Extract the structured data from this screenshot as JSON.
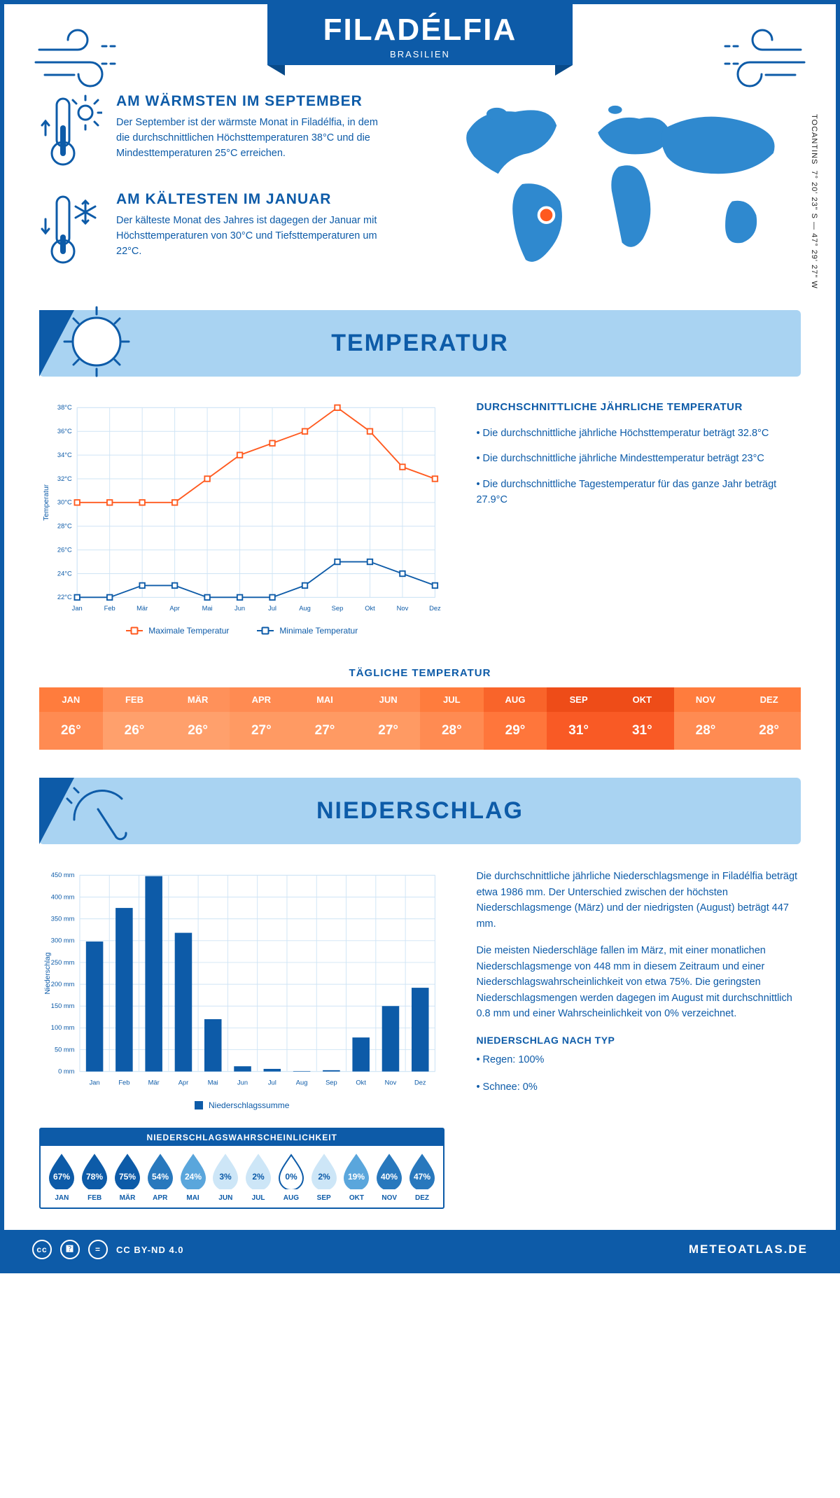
{
  "header": {
    "city": "FILADÉLFIA",
    "country": "BRASILIEN",
    "coords": "7° 20' 23\" S — 47° 29' 27\" W",
    "region": "TOCANTINS",
    "marker_color": "#ff5a1f",
    "map_color": "#2f89cf"
  },
  "colors": {
    "primary": "#0d5ba8",
    "banner": "#a9d3f2",
    "white": "#ffffff",
    "grid": "#cfe4f5"
  },
  "facts": {
    "warm_title": "AM WÄRMSTEN IM SEPTEMBER",
    "warm_body": "Der September ist der wärmste Monat in Filadélfia, in dem die durchschnittlichen Höchsttemperaturen 38°C und die Mindesttemperaturen 25°C erreichen.",
    "cold_title": "AM KÄLTESTEN IM JANUAR",
    "cold_body": "Der kälteste Monat des Jahres ist dagegen der Januar mit Höchsttemperaturen von 30°C und Tiefsttemperaturen um 22°C."
  },
  "sections": {
    "temp": "TEMPERATUR",
    "precip": "NIEDERSCHLAG"
  },
  "months": [
    "Jan",
    "Feb",
    "Mär",
    "Apr",
    "Mai",
    "Jun",
    "Jul",
    "Aug",
    "Sep",
    "Okt",
    "Nov",
    "Dez"
  ],
  "months_upper": [
    "JAN",
    "FEB",
    "MÄR",
    "APR",
    "MAI",
    "JUN",
    "JUL",
    "AUG",
    "SEP",
    "OKT",
    "NOV",
    "DEZ"
  ],
  "temperature_chart": {
    "type": "line",
    "y_title": "Temperatur",
    "yticks": [
      22,
      24,
      26,
      28,
      30,
      32,
      34,
      36,
      38
    ],
    "ylim": [
      22,
      38
    ],
    "max_color": "#ff5a1f",
    "min_color": "#0d5ba8",
    "grid_color": "#cfe4f5",
    "line_width": 2,
    "marker": "square",
    "legend": {
      "max": "Maximale Temperatur",
      "min": "Minimale Temperatur"
    },
    "max_series": [
      30,
      30,
      30,
      30,
      32,
      34,
      35,
      36,
      38,
      36,
      33,
      32
    ],
    "min_series": [
      22,
      22,
      23,
      23,
      22,
      22,
      22,
      23,
      25,
      25,
      24,
      23
    ]
  },
  "temp_text": {
    "heading": "DURCHSCHNITTLICHE JÄHRLICHE TEMPERATUR",
    "b1": "• Die durchschnittliche jährliche Höchsttemperatur beträgt 32.8°C",
    "b2": "• Die durchschnittliche jährliche Mindesttemperatur beträgt 23°C",
    "b3": "• Die durchschnittliche Tagestemperatur für das ganze Jahr beträgt 27.9°C"
  },
  "daily_temp": {
    "title": "TÄGLICHE TEMPERATUR",
    "values": [
      "26°",
      "26°",
      "26°",
      "27°",
      "27°",
      "27°",
      "28°",
      "29°",
      "31°",
      "31°",
      "28°",
      "28°"
    ],
    "hdr_colors": [
      "#ff7c3d",
      "#ff915a",
      "#ff915a",
      "#ff8b52",
      "#ff8b52",
      "#ff8b52",
      "#ff7c3d",
      "#f9642a",
      "#ee4c18",
      "#ee4c18",
      "#ff7c3d",
      "#ff7c3d"
    ],
    "val_colors": [
      "#ff8b52",
      "#ffa06c",
      "#ffa06c",
      "#ff9a63",
      "#ff9a63",
      "#ff9a63",
      "#ff8b52",
      "#ff763b",
      "#f95a25",
      "#f95a25",
      "#ff8b52",
      "#ff8b52"
    ]
  },
  "precip_chart": {
    "type": "bar",
    "y_title": "Niederschlag",
    "yticks": [
      0,
      50,
      100,
      150,
      200,
      250,
      300,
      350,
      400,
      450
    ],
    "ylim": [
      0,
      450
    ],
    "bar_color": "#0d5ba8",
    "grid_color": "#cfe4f5",
    "bar_width": 0.58,
    "legend": "Niederschlagssumme",
    "values": [
      298,
      375,
      448,
      318,
      120,
      12,
      6,
      1,
      3,
      78,
      150,
      192
    ]
  },
  "precip_text": {
    "p1": "Die durchschnittliche jährliche Niederschlagsmenge in Filadélfia beträgt etwa 1986 mm. Der Unterschied zwischen der höchsten Niederschlagsmenge (März) und der niedrigsten (August) beträgt 447 mm.",
    "p2": "Die meisten Niederschläge fallen im März, mit einer monatlichen Niederschlagsmenge von 448 mm in diesem Zeitraum und einer Niederschlagswahrscheinlichkeit von etwa 75%. Die geringsten Niederschlagsmengen werden dagegen im August mit durchschnittlich 0.8 mm und einer Wahrscheinlichkeit von 0% verzeichnet.",
    "type_h": "NIEDERSCHLAG NACH TYP",
    "t1": "• Regen: 100%",
    "t2": "• Schnee: 0%"
  },
  "probability": {
    "heading": "NIEDERSCHLAGSWAHRSCHEINLICHKEIT",
    "values": [
      67,
      78,
      75,
      54,
      24,
      3,
      2,
      0,
      2,
      19,
      40,
      47
    ],
    "labels": [
      "67%",
      "78%",
      "75%",
      "54%",
      "24%",
      "3%",
      "2%",
      "0%",
      "2%",
      "19%",
      "40%",
      "47%"
    ],
    "scale_colors": {
      "0": "#e6f2fb",
      "20": "#71b6e5",
      "40": "#3c94d4",
      "60": "#1b6fb9",
      "80": "#0d5ba8"
    }
  },
  "footer": {
    "license": "CC BY-ND 4.0",
    "site": "METEOATLAS.DE"
  }
}
